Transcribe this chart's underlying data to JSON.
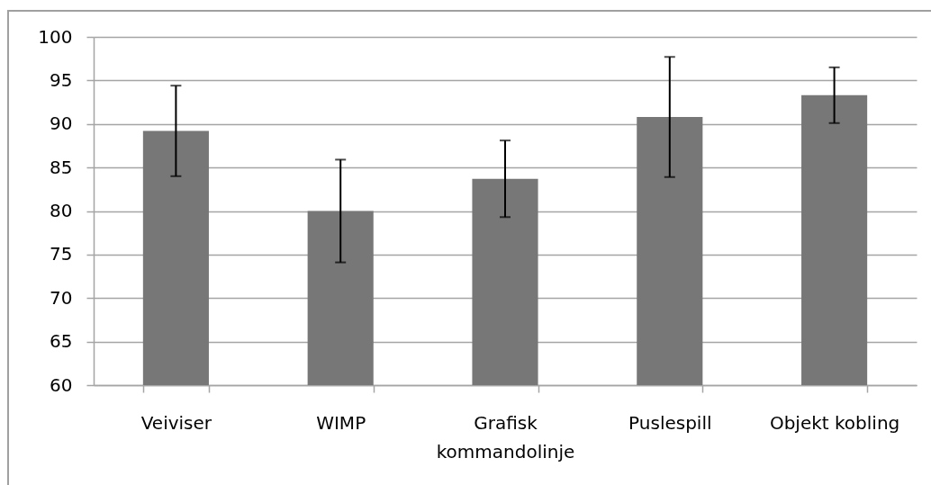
{
  "chart_data": {
    "type": "bar",
    "categories": [
      "Veiviser",
      "WIMP",
      "Grafisk kommandolinje",
      "Puslespill",
      "Objekt kobling"
    ],
    "values": [
      89.2,
      80.0,
      83.7,
      90.8,
      93.3
    ],
    "errors": [
      5.2,
      5.9,
      4.4,
      6.9,
      3.2
    ],
    "color": "#777777",
    "ylim": [
      60,
      100
    ],
    "yticks": [
      60,
      65,
      70,
      75,
      80,
      85,
      90,
      95,
      100
    ],
    "grid": "y"
  }
}
